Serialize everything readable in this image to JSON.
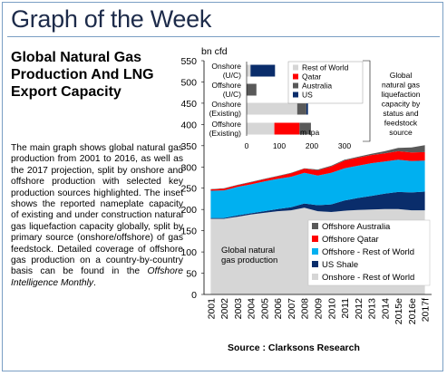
{
  "header": {
    "title": "Graph of the Week"
  },
  "article": {
    "headline": "Global Natural Gas Production And LNG Export Capacity",
    "body_main": "The main graph shows global natural gas production from 2001 to 2016, as well as the 2017 projection, split by onshore and offshore production with selected key production sources highlighted. The inset shows the reported nameplate capacity of existing and under construction natural gas liquefaction capacity globally, split by primary source (onshore/offshore) of gas feedstock. Detailed coverage of offshore gas production on a country-by-country basis can be found in the ",
    "body_italic": "Offshore Intelligence Monthly",
    "body_end": "."
  },
  "source": "Source : Clarksons Research",
  "colors": {
    "onshore_row": "#d6d6d6",
    "us_shale": "#0a2d6b",
    "offshore_row": "#00b0f0",
    "offshore_qatar": "#ff0000",
    "offshore_australia": "#595959",
    "frame": "#7a9fc4",
    "title": "#1d2b4a"
  },
  "chart_data": [
    {
      "type": "area",
      "ylabel": "bn cfd",
      "ylim": [
        0,
        550
      ],
      "yticks": [
        0,
        50,
        100,
        150,
        200,
        250,
        300,
        350,
        400,
        450,
        500,
        550
      ],
      "categories": [
        "2001",
        "2002",
        "2003",
        "2004",
        "2005",
        "2006",
        "2007",
        "2008",
        "2009",
        "2010",
        "2011",
        "2012",
        "2013",
        "2014",
        "2015e",
        "2016e",
        "2017f"
      ],
      "stacked": true,
      "annotation": "Global natural gas production",
      "legend_placement": "bottom-right",
      "series": [
        {
          "name": "Onshore - Rest of World",
          "color": "#d6d6d6",
          "values": [
            178,
            178,
            183,
            188,
            192,
            196,
            198,
            204,
            196,
            194,
            197,
            199,
            200,
            201,
            201,
            198,
            198
          ]
        },
        {
          "name": "US Shale",
          "color": "#0a2d6b",
          "values": [
            2,
            2,
            3,
            3,
            4,
            5,
            7,
            10,
            14,
            18,
            24,
            28,
            32,
            36,
            40,
            42,
            44
          ]
        },
        {
          "name": "Offshore - Rest of World",
          "color": "#00b0f0",
          "values": [
            64,
            65,
            67,
            68,
            70,
            71,
            72,
            72,
            70,
            74,
            76,
            76,
            77,
            76,
            76,
            74,
            73
          ]
        },
        {
          "name": "Offshore Qatar",
          "color": "#ff0000",
          "values": [
            3,
            4,
            4,
            5,
            5,
            6,
            8,
            10,
            12,
            15,
            18,
            19,
            19,
            19,
            20,
            20,
            20
          ]
        },
        {
          "name": "Offshore Australia",
          "color": "#595959",
          "values": [
            1,
            1,
            1,
            1,
            1,
            1,
            1,
            1,
            2,
            2,
            2,
            2,
            3,
            5,
            8,
            12,
            16
          ]
        }
      ]
    },
    {
      "type": "bar",
      "orientation": "horizontal",
      "stacked": true,
      "unit_label": "m tpa",
      "xlim": [
        0,
        350
      ],
      "xticks": [
        0,
        100,
        200,
        300
      ],
      "categories": [
        "Onshore (U/C)",
        "Offshore (U/C)",
        "Onshore (Existing)",
        "Offshore (Existing)"
      ],
      "annotation": "Global natural gas liquefaction capacity by status and feedstock source",
      "legend_placement": "top-right",
      "series": [
        {
          "name": "Rest of World",
          "color": "#d6d6d6",
          "values": [
            12,
            0,
            155,
            85
          ]
        },
        {
          "name": "Qatar",
          "color": "#ff0000",
          "values": [
            0,
            0,
            0,
            77
          ]
        },
        {
          "name": "Australia",
          "color": "#595959",
          "values": [
            0,
            30,
            28,
            35
          ]
        },
        {
          "name": "US",
          "color": "#0a2d6b",
          "values": [
            75,
            0,
            5,
            0
          ]
        }
      ]
    }
  ]
}
